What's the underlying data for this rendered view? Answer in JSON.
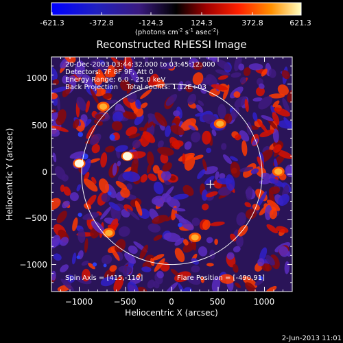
{
  "colorbar": {
    "ticks": [
      "-621.3",
      "-372.8",
      "-124.3",
      "124.3",
      "372.8",
      "621.3"
    ],
    "units_prefix": "(photons cm",
    "units_exp1": "-2",
    "units_mid": " s",
    "units_exp2": "-1",
    "units_mid2": " asec",
    "units_exp3": "-2",
    "units_suffix": ")"
  },
  "plot": {
    "title": "Reconstructed RHESSI Image",
    "info_lines": [
      "20-Dec-2003 03:44:32.000 to 03:45:12.000",
      "Detectors: 7F 8F 9F, Att 0",
      "Energy Range: 6.0 - 25.0 keV",
      "Back Projection    Total counts: 1.12E+03"
    ],
    "spin_axis": "Spin Axis = [415,-110]",
    "flare_position": "Flare Position = [-490,91]",
    "footer_date": "2-Jun-2013 11:01"
  },
  "chart_data": {
    "type": "heatmap",
    "title": "Reconstructed RHESSI Image",
    "xlabel": "Heliocentric X (arcsec)",
    "ylabel": "Heliocentric Y (arcsec)",
    "xlim": [
      -1300,
      1300
    ],
    "ylim": [
      -1300,
      1300
    ],
    "x_ticks": [
      -1000,
      -500,
      0,
      500,
      1000
    ],
    "y_ticks": [
      1000,
      500,
      0,
      -500,
      -1000
    ],
    "x_tick_labels": [
      "−1000",
      "−500",
      "0",
      "500",
      "1000"
    ],
    "y_tick_labels": [
      "1000",
      "500",
      "0",
      "−500",
      "−1000"
    ],
    "color_range": [
      -621.3,
      621.3
    ],
    "solar_limb_radius": 975,
    "solar_limb_center": [
      0,
      0
    ],
    "flare_marker": [
      415,
      -110
    ],
    "bright_sources": [
      {
        "x": -480,
        "y": 200,
        "value": 600
      },
      {
        "x": -1000,
        "y": 120,
        "value": 560
      },
      {
        "x": -740,
        "y": 750,
        "value": 330
      },
      {
        "x": 520,
        "y": 560,
        "value": 320
      },
      {
        "x": 1150,
        "y": 30,
        "value": 360
      },
      {
        "x": -680,
        "y": -650,
        "value": 320
      },
      {
        "x": 250,
        "y": -700,
        "value": 300
      }
    ],
    "colors": {
      "negative": "#3a2be0",
      "zero": "#2a1458",
      "positive": "#ff2a00",
      "max": "#ffffff",
      "limb": "#ffffff"
    }
  }
}
